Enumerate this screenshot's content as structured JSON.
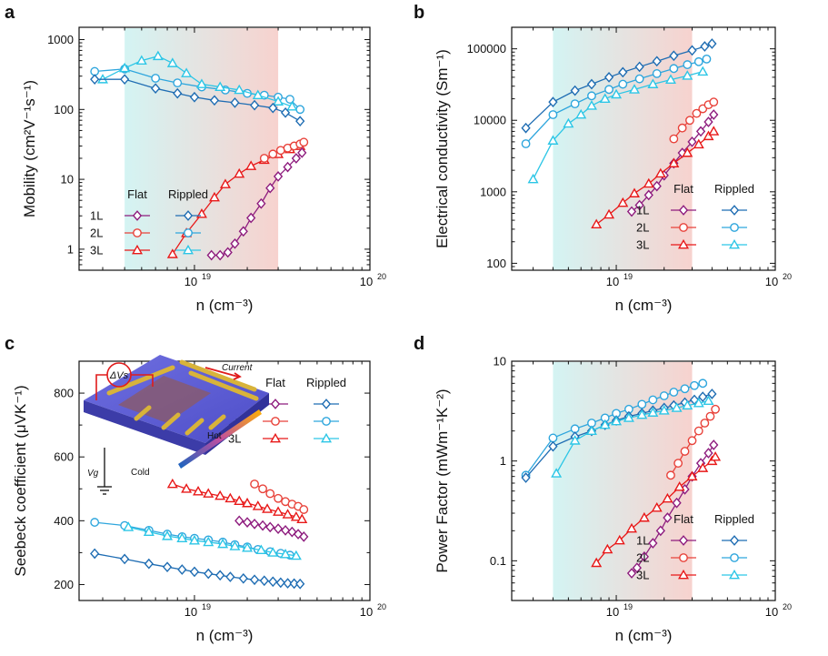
{
  "colors": {
    "flat_1L": "#8e1c7e",
    "flat_2L": "#e8423a",
    "flat_3L": "#e81818",
    "rippled_1L": "#1f6db3",
    "rippled_2L": "#2ea6dd",
    "rippled_3L": "#2cc6e6",
    "shade_left": "#c9f1f0",
    "shade_right": "#f5c7c2"
  },
  "legend": {
    "flat": "Flat",
    "rippled": "Rippled",
    "rows": [
      "1L",
      "2L",
      "3L"
    ]
  },
  "inset": {
    "delta_vs": "ΔVs",
    "current": "Current",
    "hot": "Hot",
    "cold": "Cold",
    "vg": "Vg"
  },
  "chart_data": [
    {
      "panel": "a",
      "type": "scatter",
      "ylabel": "Mobility (cm²V⁻¹s⁻¹)",
      "xlabel": "n (cm⁻³)",
      "x_scale": "log",
      "y_scale": "log",
      "xlim": [
        2.2e+18,
        1e+20
      ],
      "ylim": [
        0.5,
        1500
      ],
      "x_ticks": [
        {
          "v": 1e+19,
          "label": "10",
          "exp": "19"
        },
        {
          "v": 1e+20,
          "label": "10",
          "exp": "20"
        }
      ],
      "y_ticks": [
        {
          "v": 1,
          "label": "1"
        },
        {
          "v": 10,
          "label": "10"
        },
        {
          "v": 100,
          "label": "100"
        },
        {
          "v": 1000,
          "label": "1000"
        }
      ],
      "shade": [
        4e+18,
        3e+19
      ],
      "legend_position": "bottom-left",
      "series": [
        {
          "id": "rippled_2L",
          "marker": "circle",
          "x": [
            2.7e+18,
            4e+18,
            6e+18,
            8e+18,
            1.1e+19,
            1.5e+19,
            2e+19,
            2.5e+19,
            3e+19,
            3.5e+19,
            4e+19
          ],
          "y": [
            350,
            380,
            280,
            240,
            210,
            190,
            170,
            160,
            150,
            140,
            100
          ]
        },
        {
          "id": "rippled_3L",
          "marker": "triangle",
          "x": [
            3e+18,
            4e+18,
            5e+18,
            6.2e+18,
            7.5e+18,
            9e+18,
            1.1e+19,
            1.4e+19,
            1.8e+19,
            2.3e+19,
            3e+19,
            3.6e+19
          ],
          "y": [
            270,
            390,
            500,
            580,
            460,
            330,
            230,
            210,
            190,
            160,
            130,
            110
          ]
        },
        {
          "id": "rippled_1L",
          "marker": "diamond",
          "x": [
            2.7e+18,
            4e+18,
            6e+18,
            8e+18,
            1e+19,
            1.3e+19,
            1.7e+19,
            2.2e+19,
            2.8e+19,
            3.3e+19,
            4e+19
          ],
          "y": [
            270,
            270,
            200,
            170,
            150,
            135,
            125,
            115,
            105,
            90,
            68
          ]
        },
        {
          "id": "flat_3L",
          "marker": "triangle",
          "x": [
            7.5e+18,
            9e+18,
            1.1e+19,
            1.3e+19,
            1.5e+19,
            1.8e+19,
            2.1e+19,
            2.5e+19,
            3e+19,
            3.5e+19,
            4e+19
          ],
          "y": [
            0.85,
            1.7,
            3.2,
            5.5,
            8.5,
            12,
            15.5,
            19,
            23,
            27,
            30
          ]
        },
        {
          "id": "flat_2L",
          "marker": "circle",
          "x": [
            2.5e+19,
            2.8e+19,
            3.1e+19,
            3.4e+19,
            3.7e+19,
            4e+19,
            4.2e+19
          ],
          "y": [
            20,
            23,
            26,
            28,
            30,
            32,
            34
          ]
        },
        {
          "id": "flat_1L",
          "marker": "diamond",
          "x": [
            1.25e+19,
            1.4e+19,
            1.55e+19,
            1.7e+19,
            1.9e+19,
            2.1e+19,
            2.4e+19,
            2.7e+19,
            3e+19,
            3.4e+19,
            3.8e+19,
            4.1e+19
          ],
          "y": [
            0.82,
            0.82,
            0.9,
            1.2,
            1.8,
            2.8,
            4.5,
            7.5,
            11,
            15,
            20,
            24
          ]
        }
      ]
    },
    {
      "panel": "b",
      "type": "scatter",
      "ylabel": "Electrical conductivity (Sm⁻¹)",
      "xlabel": "n (cm⁻³)",
      "x_scale": "log",
      "y_scale": "log",
      "xlim": [
        2.2e+18,
        1e+20
      ],
      "ylim": [
        80,
        200000
      ],
      "x_ticks": [
        {
          "v": 1e+19,
          "label": "10",
          "exp": "19"
        },
        {
          "v": 1e+20,
          "label": "10",
          "exp": "20"
        }
      ],
      "y_ticks": [
        {
          "v": 100,
          "label": "100"
        },
        {
          "v": 1000,
          "label": "1000"
        },
        {
          "v": 10000,
          "label": "10000"
        },
        {
          "v": 100000,
          "label": "100000"
        }
      ],
      "shade": [
        4e+18,
        3e+19
      ],
      "legend_position": "bottom-right",
      "series": [
        {
          "id": "rippled_1L",
          "marker": "diamond",
          "x": [
            2.7e+18,
            4e+18,
            5.5e+18,
            7e+18,
            9e+18,
            1.1e+19,
            1.4e+19,
            1.8e+19,
            2.3e+19,
            3e+19,
            3.6e+19,
            4e+19
          ],
          "y": [
            7800,
            18000,
            26000,
            32000,
            40000,
            47000,
            56000,
            67000,
            80000,
            95000,
            108000,
            118000
          ]
        },
        {
          "id": "rippled_2L",
          "marker": "circle",
          "x": [
            2.7e+18,
            4e+18,
            5.5e+18,
            7e+18,
            9e+18,
            1.1e+19,
            1.4e+19,
            1.8e+19,
            2.3e+19,
            2.8e+19,
            3.3e+19,
            3.7e+19
          ],
          "y": [
            4700,
            12000,
            17000,
            22000,
            27000,
            32000,
            38000,
            45000,
            53000,
            60000,
            66000,
            72000
          ]
        },
        {
          "id": "rippled_3L",
          "marker": "triangle",
          "x": [
            3e+18,
            4e+18,
            5e+18,
            6e+18,
            7e+18,
            8.5e+18,
            1e+19,
            1.3e+19,
            1.7e+19,
            2.2e+19,
            2.8e+19,
            3.5e+19
          ],
          "y": [
            1500,
            5200,
            9000,
            12000,
            16000,
            20000,
            23000,
            27000,
            32000,
            37000,
            42000,
            48000
          ]
        },
        {
          "id": "flat_2L",
          "marker": "circle",
          "x": [
            2.3e+19,
            2.6e+19,
            2.9e+19,
            3.2e+19,
            3.5e+19,
            3.8e+19,
            4.1e+19
          ],
          "y": [
            5500,
            7800,
            10000,
            12500,
            14500,
            16500,
            18000
          ]
        },
        {
          "id": "flat_1L",
          "marker": "diamond",
          "x": [
            1.25e+19,
            1.4e+19,
            1.6e+19,
            1.8e+19,
            2e+19,
            2.3e+19,
            2.6e+19,
            3e+19,
            3.4e+19,
            3.8e+19,
            4.1e+19
          ],
          "y": [
            530,
            650,
            900,
            1200,
            1700,
            2500,
            3500,
            5000,
            7000,
            9500,
            12000
          ]
        },
        {
          "id": "flat_3L",
          "marker": "triangle",
          "x": [
            7.5e+18,
            9e+18,
            1.1e+19,
            1.3e+19,
            1.6e+19,
            1.9e+19,
            2.3e+19,
            2.8e+19,
            3.3e+19,
            3.8e+19,
            4.1e+19
          ],
          "y": [
            350,
            480,
            700,
            950,
            1300,
            1800,
            2500,
            3500,
            4600,
            6000,
            7000
          ]
        }
      ]
    },
    {
      "panel": "c",
      "type": "scatter",
      "ylabel": "Seebeck coefficient (μVK⁻¹)",
      "xlabel": "n (cm⁻³)",
      "x_scale": "log",
      "y_scale": "linear",
      "xlim": [
        2.2e+18,
        1e+20
      ],
      "ylim": [
        150,
        900
      ],
      "x_ticks": [
        {
          "v": 1e+19,
          "label": "10",
          "exp": "19"
        },
        {
          "v": 1e+20,
          "label": "10",
          "exp": "20"
        }
      ],
      "y_ticks": [
        {
          "v": 200,
          "label": "200"
        },
        {
          "v": 400,
          "label": "400"
        },
        {
          "v": 600,
          "label": "600"
        },
        {
          "v": 800,
          "label": "800"
        }
      ],
      "shade": null,
      "legend_position": "top-right",
      "series": [
        {
          "id": "flat_3L",
          "marker": "triangle",
          "x": [
            7.5e+18,
            9e+18,
            1.05e+19,
            1.2e+19,
            1.4e+19,
            1.6e+19,
            1.8e+19,
            2e+19,
            2.3e+19,
            2.6e+19,
            3e+19,
            3.4e+19,
            3.8e+19,
            4.1e+19
          ],
          "y": [
            515,
            500,
            492,
            485,
            478,
            470,
            462,
            455,
            446,
            437,
            428,
            420,
            412,
            405
          ]
        },
        {
          "id": "flat_2L",
          "marker": "circle",
          "x": [
            2.2e+19,
            2.45e+19,
            2.7e+19,
            3e+19,
            3.3e+19,
            3.6e+19,
            3.9e+19,
            4.2e+19
          ],
          "y": [
            515,
            500,
            485,
            470,
            460,
            452,
            445,
            435
          ]
        },
        {
          "id": "flat_1L",
          "marker": "diamond",
          "x": [
            1.8e+19,
            2e+19,
            2.2e+19,
            2.45e+19,
            2.7e+19,
            3e+19,
            3.3e+19,
            3.6e+19,
            3.9e+19,
            4.2e+19
          ],
          "y": [
            400,
            395,
            390,
            385,
            380,
            375,
            370,
            365,
            358,
            350
          ]
        },
        {
          "id": "rippled_2L",
          "marker": "circle",
          "x": [
            2.7e+18,
            4e+18,
            5.5e+18,
            7e+18,
            8.5e+18,
            1e+19,
            1.2e+19,
            1.45e+19,
            1.7e+19,
            2e+19,
            2.3e+19,
            2.7e+19,
            3.1e+19,
            3.5e+19
          ],
          "y": [
            395,
            385,
            370,
            358,
            350,
            345,
            340,
            333,
            325,
            318,
            310,
            303,
            298,
            292
          ]
        },
        {
          "id": "rippled_3L",
          "marker": "triangle",
          "x": [
            4.2e+18,
            5.5e+18,
            7e+18,
            8.5e+18,
            1e+19,
            1.2e+19,
            1.45e+19,
            1.7e+19,
            2e+19,
            2.4e+19,
            2.8e+19,
            3.3e+19,
            3.8e+19
          ],
          "y": [
            380,
            365,
            352,
            345,
            338,
            333,
            327,
            320,
            315,
            308,
            300,
            295,
            290
          ]
        },
        {
          "id": "rippled_1L",
          "marker": "diamond",
          "x": [
            2.7e+18,
            4e+18,
            5.5e+18,
            7e+18,
            8.5e+18,
            1e+19,
            1.2e+19,
            1.4e+19,
            1.6e+19,
            1.9e+19,
            2.2e+19,
            2.5e+19,
            2.8e+19,
            3.1e+19,
            3.4e+19,
            3.7e+19,
            4e+19
          ],
          "y": [
            297,
            280,
            265,
            255,
            247,
            240,
            234,
            229,
            224,
            219,
            215,
            212,
            209,
            206,
            204,
            203,
            202
          ]
        }
      ]
    },
    {
      "panel": "d",
      "type": "scatter",
      "ylabel": "Power Factor (mWm⁻¹K⁻²)",
      "xlabel": "n (cm⁻³)",
      "x_scale": "log",
      "y_scale": "log",
      "xlim": [
        2.2e+18,
        1e+20
      ],
      "ylim": [
        0.04,
        10
      ],
      "x_ticks": [
        {
          "v": 1e+19,
          "label": "10",
          "exp": "19"
        },
        {
          "v": 1e+20,
          "label": "10",
          "exp": "20"
        }
      ],
      "y_ticks": [
        {
          "v": 0.1,
          "label": "0.1"
        },
        {
          "v": 1,
          "label": "1"
        },
        {
          "v": 10,
          "label": "10"
        }
      ],
      "shade": [
        4e+18,
        3e+19
      ],
      "legend_position": "bottom-right",
      "series": [
        {
          "id": "rippled_2L",
          "marker": "circle",
          "x": [
            2.7e+18,
            4e+18,
            5.5e+18,
            7e+18,
            8.5e+18,
            1e+19,
            1.2e+19,
            1.45e+19,
            1.7e+19,
            2e+19,
            2.3e+19,
            2.7e+19,
            3.1e+19,
            3.5e+19
          ],
          "y": [
            0.72,
            1.7,
            2.1,
            2.4,
            2.7,
            3,
            3.3,
            3.7,
            4.1,
            4.5,
            4.9,
            5.3,
            5.7,
            6
          ]
        },
        {
          "id": "rippled_1L",
          "marker": "diamond",
          "x": [
            2.7e+18,
            4e+18,
            5.5e+18,
            7e+18,
            8.5e+18,
            1e+19,
            1.2e+19,
            1.45e+19,
            1.7e+19,
            2e+19,
            2.3e+19,
            2.7e+19,
            3.1e+19,
            3.5e+19,
            4e+19
          ],
          "y": [
            0.68,
            1.4,
            1.75,
            2,
            2.3,
            2.55,
            2.8,
            3,
            3.2,
            3.4,
            3.6,
            3.85,
            4.1,
            4.4,
            4.7
          ]
        },
        {
          "id": "rippled_3L",
          "marker": "triangle",
          "x": [
            4.2e+18,
            5.5e+18,
            7e+18,
            8.5e+18,
            1e+19,
            1.2e+19,
            1.45e+19,
            1.7e+19,
            2e+19,
            2.4e+19,
            2.8e+19,
            3.3e+19,
            3.8e+19
          ],
          "y": [
            0.75,
            1.6,
            2,
            2.3,
            2.5,
            2.7,
            2.9,
            3.05,
            3.2,
            3.4,
            3.6,
            3.8,
            4
          ]
        },
        {
          "id": "flat_2L",
          "marker": "circle",
          "x": [
            2.2e+19,
            2.45e+19,
            2.7e+19,
            3e+19,
            3.3e+19,
            3.6e+19,
            3.9e+19,
            4.2e+19
          ],
          "y": [
            0.72,
            0.95,
            1.25,
            1.6,
            2,
            2.4,
            2.8,
            3.3
          ]
        },
        {
          "id": "flat_1L",
          "marker": "diamond",
          "x": [
            1.25e+19,
            1.35e+19,
            1.5e+19,
            1.7e+19,
            1.9e+19,
            2.1e+19,
            2.4e+19,
            2.7e+19,
            3e+19,
            3.4e+19,
            3.8e+19,
            4.1e+19
          ],
          "y": [
            0.075,
            0.085,
            0.11,
            0.15,
            0.2,
            0.27,
            0.38,
            0.52,
            0.7,
            0.95,
            1.2,
            1.45
          ]
        },
        {
          "id": "flat_3L",
          "marker": "triangle",
          "x": [
            7.5e+18,
            8.8e+18,
            1.05e+19,
            1.25e+19,
            1.5e+19,
            1.8e+19,
            2.1e+19,
            2.5e+19,
            3e+19,
            3.5e+19,
            4e+19,
            4.2e+19
          ],
          "y": [
            0.095,
            0.13,
            0.16,
            0.21,
            0.27,
            0.34,
            0.42,
            0.55,
            0.7,
            0.85,
            1,
            1.1
          ]
        }
      ]
    }
  ]
}
